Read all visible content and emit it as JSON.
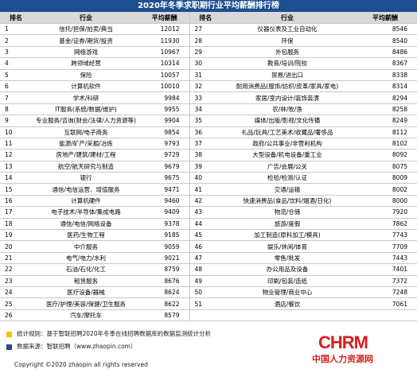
{
  "title": "2020年冬季求职期行业平均薪酬排行榜",
  "table": {
    "header": [
      "排名",
      "行业",
      "平均薪酬",
      "排名",
      "行业",
      "平均薪酬"
    ],
    "left_rows": [
      [
        1,
        "信托/担保/拍卖/典当",
        12012
      ],
      [
        2,
        "基金/证券/期货/投资",
        11930
      ],
      [
        3,
        "网络游戏",
        10967
      ],
      [
        4,
        "跨领域经营",
        10314
      ],
      [
        5,
        "保险",
        10057
      ],
      [
        6,
        "计算机软件",
        10010
      ],
      [
        7,
        "学术/科研",
        9984
      ],
      [
        8,
        "IT服务(系统/数据/维护)",
        9955
      ],
      [
        9,
        "专业服务/咨询(财会/法律/人力资源等)",
        9904
      ],
      [
        10,
        "互联网/电子商务",
        9854
      ],
      [
        11,
        "能源/矿产/采掘/冶炼",
        9793
      ],
      [
        12,
        "房地产/建筑/建材/工程",
        9729
      ],
      [
        13,
        "航空/航天研究与制造",
        9679
      ],
      [
        14,
        "银行",
        9675
      ],
      [
        15,
        "通信/电信运营、增值服务",
        9471
      ],
      [
        16,
        "计算机硬件",
        9460
      ],
      [
        17,
        "电子技术/半导体/集成电路",
        9409
      ],
      [
        18,
        "通信/电信/网络设备",
        9378
      ],
      [
        19,
        "医药/生物工程",
        9185
      ],
      [
        20,
        "中介服务",
        9059
      ],
      [
        21,
        "电气/电力/水利",
        9021
      ],
      [
        22,
        "石油/石化/化工",
        8759
      ],
      [
        23,
        "租赁服务",
        8676
      ],
      [
        24,
        "医疗设备/器械",
        8624
      ],
      [
        25,
        "医疗/护理/美容/保健/卫生服务",
        8622
      ],
      [
        26,
        "汽车/摩托车",
        8579
      ]
    ],
    "right_rows": [
      [
        27,
        "仪器仪表及工业自动化",
        8546
      ],
      [
        28,
        "环保",
        8540
      ],
      [
        29,
        "外包服务",
        8486
      ],
      [
        30,
        "教育/培训/院校",
        8367
      ],
      [
        31,
        "贸易/进出口",
        8338
      ],
      [
        32,
        "耐用消费品(服饰/纺织/皮革/家具/家电)",
        8314
      ],
      [
        33,
        "家居/室内设计/装饰装潢",
        8294
      ],
      [
        34,
        "农/林/牧/渔",
        8258
      ],
      [
        35,
        "媒体/出版/影视/文化传播",
        8249
      ],
      [
        36,
        "礼品/玩具/工艺美术/收藏品/奢侈品",
        8112
      ],
      [
        37,
        "政府/公共事业/非营利机构",
        8102
      ],
      [
        38,
        "大型设备/机电设备/重工业",
        8092
      ],
      [
        39,
        "广告/会展/公关",
        8075
      ],
      [
        40,
        "检验/检测/认证",
        8009
      ],
      [
        41,
        "交通/运输",
        8002
      ],
      [
        42,
        "快速消费品(食品/饮料/烟酒/日化)",
        8000
      ],
      [
        43,
        "物流/仓储",
        7920
      ],
      [
        44,
        "旅游/度假",
        7862
      ],
      [
        45,
        "加工制造(原料加工/模具)",
        7743
      ],
      [
        46,
        "娱乐/休闲/体育",
        7709
      ],
      [
        47,
        "零售/批发",
        7443
      ],
      [
        48,
        "办公用品及设备",
        7401
      ],
      [
        49,
        "印刷/包装/造纸",
        7372
      ],
      [
        50,
        "物业管理/商业中心",
        7248
      ],
      [
        51,
        "酒店/餐饮",
        7061
      ]
    ]
  },
  "footer": {
    "rule": "统计规则：基于智联招聘2020年冬季在线招聘数据库的数据监测统计分析",
    "source": "数据来源：智联招聘（www.zhaopin.com）",
    "copyright": "Copyright ©2020 zhaopin all rights reserved"
  },
  "logo": {
    "brand": "CHRM",
    "site": "中国人力资源网"
  }
}
